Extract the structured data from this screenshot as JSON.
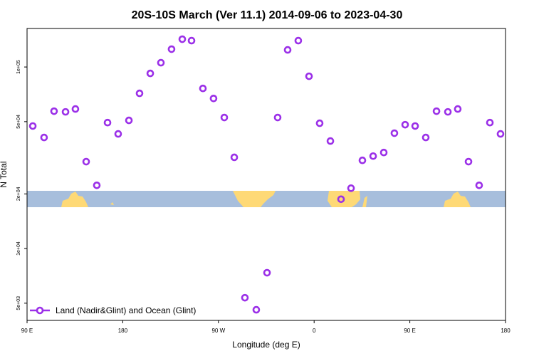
{
  "chart_data": {
    "type": "scatter",
    "title": "20S-10S March (Ver 11.1)   2014-09-06 to 2023-04-30",
    "x_label": "Longitude (deg E)",
    "y_label": "N Total",
    "log_y": true,
    "legend_position": "bottom-left",
    "xlim": [
      90,
      540
    ],
    "ylim": [
      4020,
      163000
    ],
    "xticks": [
      {
        "value": 90,
        "label": "90 E"
      },
      180,
      {
        "value": 270,
        "label": "90 W"
      },
      {
        "value": 360,
        "label": "0"
      },
      {
        "value": 450,
        "label": "90 E"
      },
      {
        "value": 540,
        "label": "180"
      }
    ],
    "yticks": [
      {
        "value": 5000,
        "label": "5e+03"
      },
      {
        "value": 10000,
        "label": "1e+04"
      },
      {
        "value": 20000,
        "label": "2e+04"
      },
      {
        "value": 50000,
        "label": "5e+04"
      },
      {
        "value": 100000,
        "label": "1e+05"
      }
    ],
    "series": [
      {
        "name": "Land (Nadir&Glint) and Ocean (Glint)",
        "color": "#9b30e8",
        "x": [
          95.4,
          106,
          115.4,
          126.2,
          135.5,
          145.6,
          155.6,
          165.7,
          175.7,
          185.8,
          195.8,
          205.9,
          215.9,
          225.9,
          236,
          244.7,
          255.4,
          265.4,
          275.5,
          284.9,
          294.9,
          305.6,
          315.7,
          325.7,
          335.1,
          345.1,
          355.2,
          365.2,
          375.3,
          385.3,
          394.7,
          405.4,
          415.5,
          425.5,
          435.5,
          445.6,
          455,
          465,
          475.1,
          485.8,
          495.1,
          505.2,
          515.2,
          525.3,
          535.3
        ],
        "values": [
          47300,
          40900,
          57100,
          56600,
          58700,
          30100,
          22300,
          49400,
          42800,
          50800,
          71600,
          92200,
          105600,
          125400,
          142300,
          139700,
          76200,
          67100,
          52700,
          31800,
          5360,
          4600,
          7360,
          52700,
          124200,
          139700,
          88900,
          49000,
          39100,
          18700,
          21500,
          30600,
          32300,
          33800,
          43200,
          48100,
          47300,
          40900,
          57100,
          56600,
          58700,
          30100,
          22300,
          49400,
          42800
        ]
      }
    ]
  }
}
